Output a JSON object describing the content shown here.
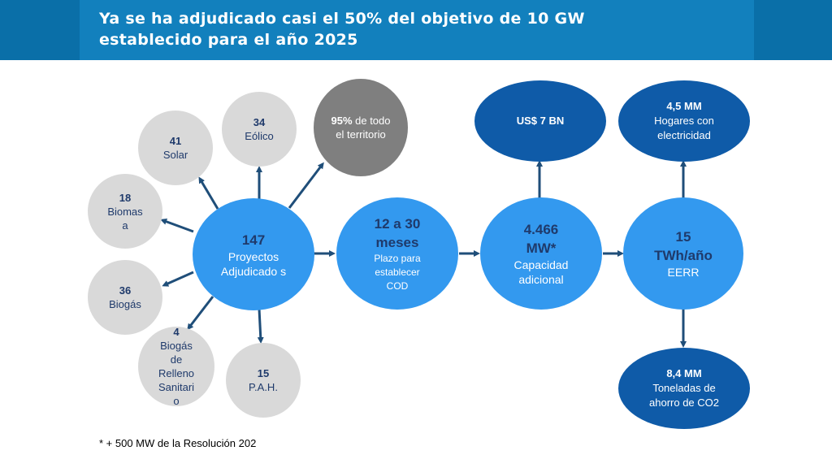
{
  "title": "Ya se ha adjudicado casi el 50% del objetivo de 10 GW establecido para el año 2025",
  "nodes": {
    "solar": {
      "value": "41",
      "label": "Solar"
    },
    "eolico": {
      "value": "34",
      "label": "Eólico"
    },
    "territorio": {
      "value": "95%",
      "label": " de todo el territorio"
    },
    "biomasa": {
      "value": "18",
      "label": "Biomas a"
    },
    "biogas": {
      "value": "36",
      "label": "Biogás"
    },
    "relleno": {
      "value": "4",
      "label": "Biogás de Relleno Sanitari o"
    },
    "pah": {
      "value": "15",
      "label": "P.A.H."
    },
    "proyectos": {
      "value": "147",
      "label": "Proyectos Adjudicado s"
    },
    "plazo": {
      "value": "12 a 30 meses",
      "label": "Plazo para establecer COD"
    },
    "capacidad": {
      "value": "4.466 MW*",
      "label": "Capacidad adicional"
    },
    "eerr": {
      "value": "15 TWh/año",
      "label": "EERR"
    },
    "inversion": {
      "value": "US$ 7 BN"
    },
    "hogares": {
      "value": "4,5 MM",
      "label": "Hogares con electricidad"
    },
    "toneladas": {
      "value": "8,4 MM",
      "label": "Toneladas de ahorro de CO2"
    }
  },
  "footnote": "* + 500 MW de la Resolución 202",
  "colors": {
    "header": "#0a6fa8",
    "header_inner": "#1280bd",
    "blue_node": "#3399ef",
    "navy_node": "#0f5ba8",
    "grey_node": "#d9d9d9",
    "dark_grey_node": "#7f7f7f",
    "arrow": "#1f4e79"
  }
}
